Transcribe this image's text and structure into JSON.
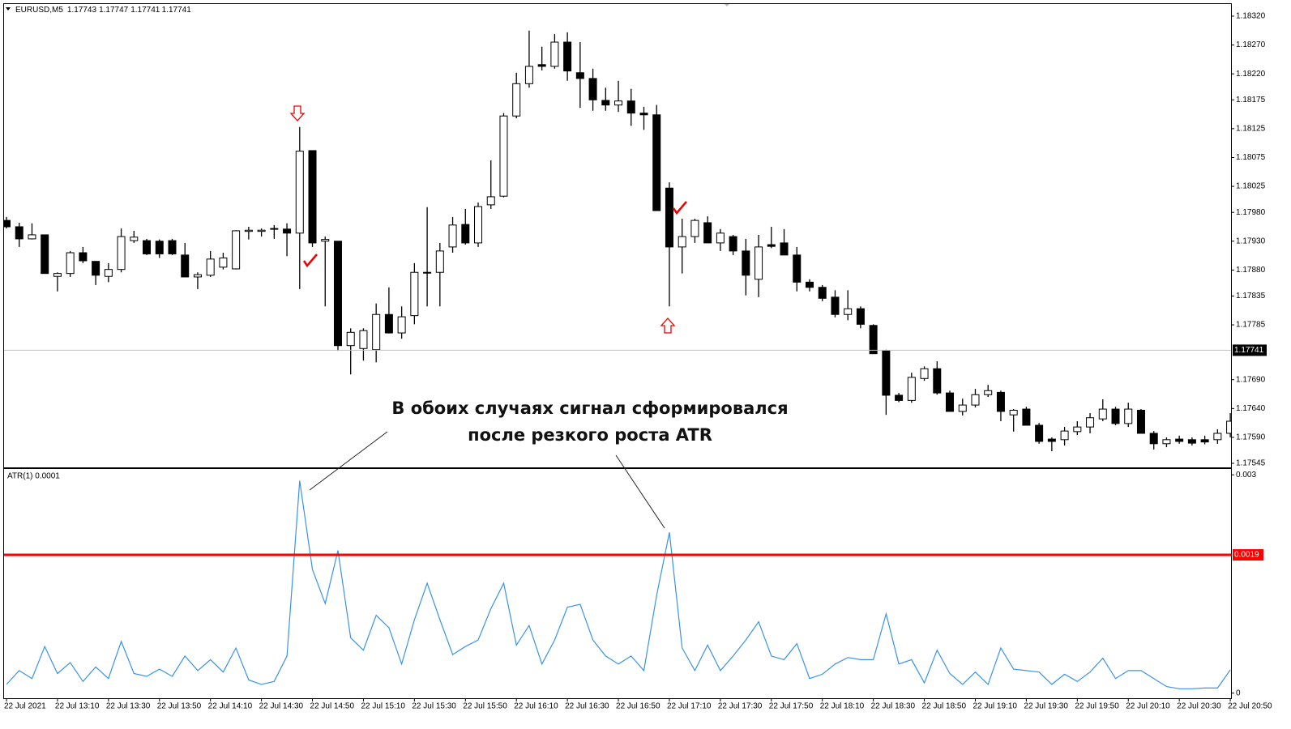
{
  "chart_data": [
    {
      "type": "candlestick",
      "title": "EURUSD,M5",
      "header_values": [
        1.17743,
        1.17747,
        1.17741,
        1.17741
      ],
      "x": [
        "22 Jul 2021",
        null,
        null,
        null,
        "22 Jul 13:10",
        null,
        null,
        null,
        "22 Jul 13:30",
        null,
        null,
        null,
        "22 Jul 13:50",
        null,
        null,
        null,
        "22 Jul 14:10",
        null,
        null,
        null,
        "22 Jul 14:30",
        null,
        null,
        null,
        "22 Jul 14:50",
        null,
        null,
        null,
        "22 Jul 15:10",
        null,
        null,
        null,
        "22 Jul 15:30",
        null,
        null,
        null,
        "22 Jul 15:50",
        null,
        null,
        null,
        "22 Jul 16:10",
        null,
        null,
        null,
        "22 Jul 16:30",
        null,
        null,
        null,
        "22 Jul 16:50",
        null,
        null,
        null,
        "22 Jul 17:10",
        null,
        null,
        null,
        "22 Jul 17:30",
        null,
        null,
        null,
        "22 Jul 17:50",
        null,
        null,
        null,
        "22 Jul 18:10",
        null,
        null,
        null,
        "22 Jul 18:30",
        null,
        null,
        null,
        "22 Jul 18:50",
        null,
        null,
        null,
        "22 Jul 19:10",
        null,
        null,
        null,
        "22 Jul 19:30",
        null,
        null,
        null,
        "22 Jul 19:50",
        null,
        null,
        null,
        "22 Jul 20:10",
        null,
        null,
        null,
        "22 Jul 20:30",
        null,
        null,
        null,
        "22 Jul 20:50"
      ],
      "open": [
        1.17966,
        1.17955,
        1.17934,
        1.17941,
        1.17869,
        1.17874,
        1.1791,
        1.17895,
        1.17869,
        1.17881,
        1.17931,
        1.17931,
        1.1793,
        1.17931,
        1.17906,
        1.17868,
        1.17871,
        1.17885,
        1.17882,
        1.17947,
        1.17947,
        1.17951,
        1.17951,
        1.17944,
        1.18087,
        1.1793,
        1.1793,
        1.17749,
        1.17744,
        1.17742,
        1.17803,
        1.17771,
        1.17801,
        1.17875,
        1.17876,
        1.1792,
        1.17959,
        1.17927,
        1.17993,
        1.18008,
        1.18147,
        1.18203,
        1.18236,
        1.18233,
        1.18275,
        1.18222,
        1.18212,
        1.18174,
        1.18166,
        1.18173,
        1.18152,
        1.18149,
        1.18022,
        1.1792,
        1.17938,
        1.17962,
        1.17927,
        1.17938,
        1.17913,
        1.17864,
        1.17924,
        1.17927,
        1.17906,
        1.17859,
        1.1785,
        1.17833,
        1.17803,
        1.17813,
        1.17784,
        1.1774,
        1.17663,
        1.17654,
        1.17692,
        1.17709,
        1.17667,
        1.17635,
        1.17646,
        1.17664,
        1.17668,
        1.17629,
        1.17639,
        1.17611,
        1.17587,
        1.17586,
        1.176,
        1.17608,
        1.17622,
        1.17639,
        1.17614,
        1.17637,
        1.17597,
        1.17579,
        1.17587,
        1.17586,
        1.17586,
        1.17586,
        1.17597
      ],
      "high": [
        1.17972,
        1.17962,
        1.17961,
        1.17941,
        1.17876,
        1.17913,
        1.1792,
        1.17895,
        1.17892,
        1.17952,
        1.17948,
        1.17934,
        1.17933,
        1.17934,
        1.17927,
        1.17876,
        1.17913,
        1.1791,
        1.17949,
        1.17955,
        1.17952,
        1.17958,
        1.17961,
        1.18128,
        1.18087,
        1.17938,
        1.1793,
        1.17779,
        1.17779,
        1.17822,
        1.1785,
        1.17817,
        1.17892,
        1.17989,
        1.17927,
        1.17972,
        1.17986,
        1.17997,
        1.1807,
        1.18152,
        1.18222,
        1.18295,
        1.18267,
        1.18289,
        1.18292,
        1.18275,
        1.18229,
        1.18196,
        1.18208,
        1.18194,
        1.18163,
        1.18166,
        1.18032,
        1.17969,
        1.17969,
        1.17973,
        1.17951,
        1.17941,
        1.17934,
        1.17941,
        1.17955,
        1.17951,
        1.1792,
        1.17864,
        1.17854,
        1.17845,
        1.17845,
        1.17817,
        1.17786,
        1.17742,
        1.17667,
        1.17702,
        1.17713,
        1.17722,
        1.17671,
        1.17657,
        1.17674,
        1.17681,
        1.17671,
        1.17639,
        1.17643,
        1.17615,
        1.1759,
        1.17608,
        1.17618,
        1.17632,
        1.17656,
        1.17643,
        1.1765,
        1.17639,
        1.17601,
        1.1759,
        1.17593,
        1.1759,
        1.17593,
        1.17604,
        1.17632
      ],
      "low": [
        1.17952,
        1.1792,
        1.17933,
        1.17874,
        1.17843,
        1.17868,
        1.17892,
        1.17854,
        1.17859,
        1.17876,
        1.17927,
        1.17906,
        1.17901,
        1.17906,
        1.17868,
        1.17847,
        1.17868,
        1.17881,
        1.17881,
        1.17933,
        1.17938,
        1.17934,
        1.17904,
        1.17847,
        1.1792,
        1.17817,
        1.1774,
        1.17699,
        1.17723,
        1.1772,
        1.1777,
        1.17761,
        1.17786,
        1.17817,
        1.17817,
        1.1791,
        1.17924,
        1.1792,
        1.17986,
        1.18006,
        1.18143,
        1.18196,
        1.18226,
        1.18229,
        1.18208,
        1.18161,
        1.18156,
        1.18156,
        1.18154,
        1.1813,
        1.18123,
        1.17983,
        1.17817,
        1.17874,
        1.17927,
        1.17927,
        1.17913,
        1.17906,
        1.17836,
        1.17833,
        1.17918,
        1.17906,
        1.17843,
        1.17843,
        1.17826,
        1.17798,
        1.17793,
        1.17779,
        1.17735,
        1.17629,
        1.17651,
        1.1765,
        1.17688,
        1.17664,
        1.17635,
        1.17628,
        1.17642,
        1.1766,
        1.17618,
        1.176,
        1.17611,
        1.17579,
        1.17566,
        1.17576,
        1.17594,
        1.17597,
        1.17618,
        1.17611,
        1.17608,
        1.17597,
        1.17569,
        1.17573,
        1.17579,
        1.17576,
        1.17578,
        1.17579,
        1.1759
      ],
      "close": [
        1.17955,
        1.17934,
        1.17941,
        1.17874,
        1.17874,
        1.1791,
        1.17896,
        1.17871,
        1.17881,
        1.17938,
        1.17937,
        1.17908,
        1.17908,
        1.17908,
        1.17868,
        1.17872,
        1.17899,
        1.17901,
        1.17948,
        1.17949,
        1.17949,
        1.17952,
        1.17944,
        1.18086,
        1.17927,
        1.17933,
        1.17749,
        1.17772,
        1.17775,
        1.17803,
        1.17771,
        1.17799,
        1.17876,
        1.17876,
        1.17913,
        1.17958,
        1.17927,
        1.1799,
        1.18007,
        1.18147,
        1.18203,
        1.18233,
        1.18233,
        1.18275,
        1.18225,
        1.18212,
        1.18175,
        1.18166,
        1.18173,
        1.18152,
        1.18149,
        1.17983,
        1.1792,
        1.17938,
        1.17966,
        1.17927,
        1.17944,
        1.17913,
        1.17871,
        1.1792,
        1.17921,
        1.17906,
        1.17859,
        1.1785,
        1.17831,
        1.17803,
        1.17813,
        1.17786,
        1.17735,
        1.17663,
        1.17654,
        1.17694,
        1.17709,
        1.17667,
        1.17635,
        1.17646,
        1.17664,
        1.17671,
        1.17635,
        1.17637,
        1.17611,
        1.17583,
        1.17583,
        1.17601,
        1.17608,
        1.17624,
        1.17639,
        1.17614,
        1.17639,
        1.17597,
        1.17579,
        1.17586,
        1.17583,
        1.1758,
        1.17582,
        1.17597,
        1.17618
      ],
      "ylim": [
        1.17538,
        1.18341
      ],
      "yticks": [
        {
          "value": 1.1832,
          "label": "1.18320"
        },
        {
          "value": 1.1827,
          "label": "1.18270"
        },
        {
          "value": 1.1822,
          "label": "1.18220"
        },
        1.18175,
        1.18125,
        1.18075,
        1.18025,
        {
          "value": 1.1798,
          "label": "1.17980"
        },
        {
          "value": 1.1793,
          "label": "1.17930"
        },
        {
          "value": 1.1788,
          "label": "1.17880"
        },
        1.17835,
        1.17785,
        {
          "value": 1.1769,
          "label": "1.17690"
        },
        {
          "value": 1.1764,
          "label": "1.17640"
        },
        {
          "value": 1.1759,
          "label": "1.17590"
        },
        1.17545
      ],
      "last_price": 1.17741,
      "bull_color": "#ffffff",
      "bear_color": "#000000",
      "annotation": [
        "В обоих случаях сигнал сформировался",
        "после резкого роста ATR"
      ]
    },
    {
      "type": "line",
      "title": "ATR(1) 0.0001",
      "color": "#3a93e6",
      "values": [
        0.00012,
        0.00031,
        0.0002,
        0.00064,
        0.00027,
        0.00042,
        0.00016,
        0.00036,
        0.0002,
        0.00071,
        0.00027,
        0.00023,
        0.00033,
        0.00023,
        0.00051,
        0.00031,
        0.00046,
        0.00029,
        0.00062,
        0.00018,
        0.00012,
        0.00016,
        0.00051,
        0.00292,
        0.0017,
        0.00123,
        0.00196,
        0.00076,
        0.00059,
        0.00107,
        0.0009,
        0.0004,
        0.00101,
        0.00151,
        0.00101,
        0.00053,
        0.00064,
        0.00073,
        0.00116,
        0.00151,
        0.00066,
        0.00093,
        0.0004,
        0.00073,
        0.00118,
        0.00122,
        0.00073,
        0.00051,
        0.0004,
        0.00051,
        0.00031,
        0.00134,
        0.00221,
        0.00062,
        0.00031,
        0.00066,
        0.00031,
        0.00051,
        0.00073,
        0.00098,
        0.00051,
        0.00046,
        0.00068,
        0.0002,
        0.00026,
        0.0004,
        0.00049,
        0.00046,
        0.00046,
        0.00109,
        0.0004,
        0.00046,
        0.00014,
        0.00059,
        0.00027,
        0.00012,
        0.00029,
        0.00012,
        0.00062,
        0.00033,
        0.00031,
        0.00029,
        0.00012,
        0.00026,
        0.00016,
        0.00029,
        0.00048,
        0.0002,
        0.00031,
        0.00031,
        0.0002,
        9e-05,
        6e-05,
        6e-05,
        7e-05,
        7e-05,
        0.00032
      ],
      "ylim": [
        -7e-05,
        0.00308
      ],
      "yticks": [
        0.003,
        0
      ],
      "level": 0.0019,
      "level_color": "#ff0000"
    }
  ]
}
